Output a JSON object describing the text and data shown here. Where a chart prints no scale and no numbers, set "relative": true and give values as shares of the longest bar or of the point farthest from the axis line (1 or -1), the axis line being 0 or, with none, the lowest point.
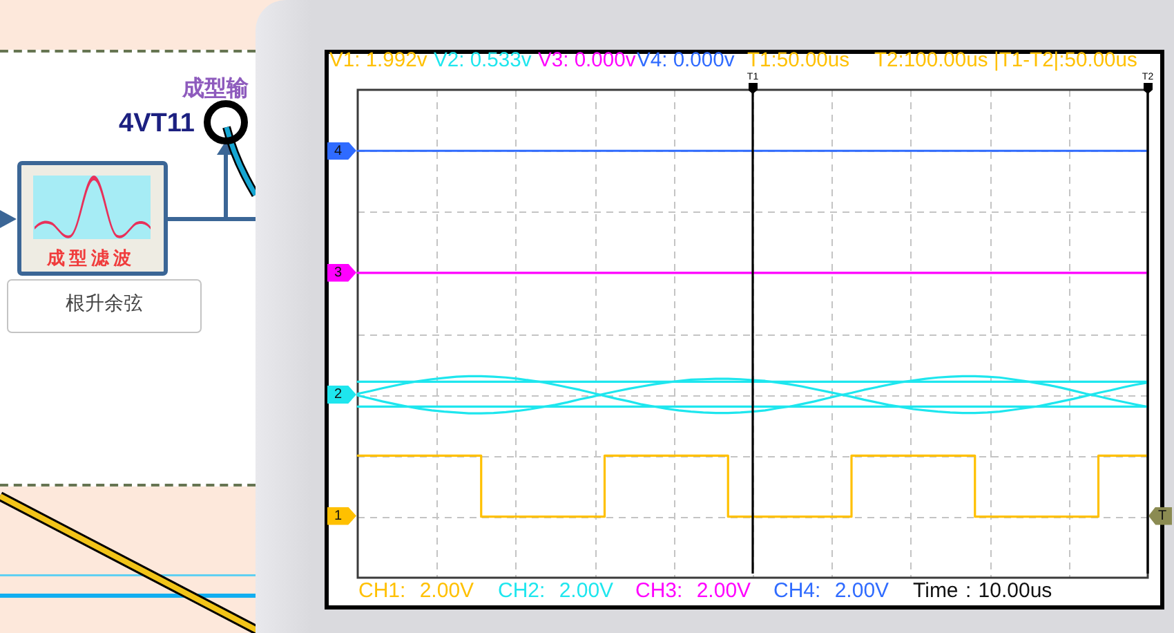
{
  "chart_data": {
    "type": "line",
    "relative": true,
    "marker": "none",
    "grid": true,
    "tick_labels": "x",
    "categories": [
      null,
      null,
      null,
      null,
      null,
      null,
      null,
      null,
      null,
      null,
      null,
      null,
      null,
      null,
      null,
      null,
      null,
      null,
      null,
      null,
      null,
      null,
      null,
      null,
      null,
      null,
      null,
      null,
      null,
      null,
      null,
      null,
      "T1",
      null,
      null,
      null,
      null,
      null,
      null,
      null,
      null,
      null,
      null,
      null,
      null,
      null,
      null,
      null,
      null,
      null,
      null,
      null,
      null,
      null,
      null,
      null,
      null,
      null,
      null,
      null,
      null,
      null,
      null,
      null,
      "T2"
    ],
    "series": [
      {
        "type": "step",
        "color": "#ffc000",
        "values": [
          0.286,
          0.286,
          0.286,
          0.286,
          0.286,
          0.286,
          0.286,
          0.286,
          0.286,
          0.286,
          0.143,
          0.143,
          0.143,
          0.143,
          0.143,
          0.143,
          0.143,
          0.143,
          0.143,
          0.143,
          0.286,
          0.286,
          0.286,
          0.286,
          0.286,
          0.286,
          0.286,
          0.286,
          0.286,
          0.286,
          0.143,
          0.143,
          0.143,
          0.143,
          0.143,
          0.143,
          0.143,
          0.143,
          0.143,
          0.143,
          0.286,
          0.286,
          0.286,
          0.286,
          0.286,
          0.286,
          0.286,
          0.286,
          0.286,
          0.286,
          0.143,
          0.143,
          0.143,
          0.143,
          0.143,
          0.143,
          0.143,
          0.143,
          0.143,
          0.143,
          0.286,
          0.286,
          0.286,
          0.286,
          0.286
        ]
      },
      {
        "type": "line",
        "color": "#1ee6ee",
        "values": [
          0.459,
          0.459,
          0.459,
          0.459,
          0.459,
          0.459,
          0.459,
          0.459,
          0.459,
          0.459,
          0.459,
          0.459,
          0.459,
          0.459,
          0.459,
          0.459,
          0.459,
          0.459,
          0.459,
          0.459,
          0.459,
          0.459,
          0.459,
          0.459,
          0.459,
          0.459,
          0.459,
          0.459,
          0.459,
          0.459,
          0.459,
          0.459,
          0.459,
          0.459,
          0.459,
          0.459,
          0.459,
          0.459,
          0.459,
          0.459,
          0.459,
          0.459,
          0.459,
          0.459,
          0.459,
          0.459,
          0.459,
          0.459,
          0.459,
          0.459,
          0.459,
          0.459,
          0.459,
          0.459,
          0.459,
          0.459,
          0.459,
          0.459,
          0.459,
          0.459,
          0.459,
          0.459,
          0.459,
          0.459,
          0.459
        ]
      },
      {
        "type": "line",
        "color": "#1ee6ee",
        "values": [
          0.401,
          0.401,
          0.401,
          0.401,
          0.401,
          0.401,
          0.401,
          0.401,
          0.401,
          0.401,
          0.401,
          0.401,
          0.401,
          0.401,
          0.401,
          0.401,
          0.401,
          0.401,
          0.401,
          0.401,
          0.401,
          0.401,
          0.401,
          0.401,
          0.401,
          0.401,
          0.401,
          0.401,
          0.401,
          0.401,
          0.401,
          0.401,
          0.401,
          0.401,
          0.401,
          0.401,
          0.401,
          0.401,
          0.401,
          0.401,
          0.401,
          0.401,
          0.401,
          0.401,
          0.401,
          0.401,
          0.401,
          0.401,
          0.401,
          0.401,
          0.401,
          0.401,
          0.401,
          0.401,
          0.401,
          0.401,
          0.401,
          0.401,
          0.401,
          0.401,
          0.401,
          0.401,
          0.401,
          0.401,
          0.401
        ]
      },
      {
        "type": "line",
        "color": "#1ee6ee",
        "values": [
          0.431,
          0.437,
          0.444,
          0.45,
          0.456,
          0.461,
          0.465,
          0.468,
          0.471,
          0.472,
          0.472,
          0.471,
          0.469,
          0.466,
          0.462,
          0.458,
          0.452,
          0.446,
          0.44,
          0.433,
          0.426,
          0.419,
          0.413,
          0.406,
          0.401,
          0.396,
          0.392,
          0.389,
          0.387,
          0.386,
          0.386,
          0.387,
          0.389,
          0.392,
          0.397,
          0.401,
          0.407,
          0.413,
          0.42,
          0.427,
          0.433,
          0.44,
          0.446,
          0.452,
          0.458,
          0.462,
          0.466,
          0.469,
          0.471,
          0.472,
          0.472,
          0.471,
          0.469,
          0.465,
          0.461,
          0.456,
          0.451,
          0.445,
          0.438,
          0.431,
          0.425,
          0.418,
          0.412,
          0.406,
          0.4
        ]
      },
      {
        "type": "line",
        "color": "#1ee6ee",
        "values": [
          0.427,
          0.42,
          0.413,
          0.407,
          0.401,
          0.396,
          0.392,
          0.389,
          0.387,
          0.385,
          0.385,
          0.386,
          0.388,
          0.391,
          0.395,
          0.4,
          0.405,
          0.411,
          0.418,
          0.424,
          0.431,
          0.437,
          0.443,
          0.448,
          0.453,
          0.457,
          0.461,
          0.464,
          0.465,
          0.466,
          0.466,
          0.465,
          0.463,
          0.461,
          0.457,
          0.453,
          0.448,
          0.442,
          0.436,
          0.43,
          0.424,
          0.417,
          0.411,
          0.405,
          0.4,
          0.395,
          0.392,
          0.389,
          0.387,
          0.386,
          0.386,
          0.387,
          0.389,
          0.393,
          0.397,
          0.401,
          0.407,
          0.413,
          0.419,
          0.426,
          0.433,
          0.439,
          0.446,
          0.452,
          0.457
        ]
      },
      {
        "type": "line",
        "color": "#ff00ff",
        "values": [
          0.714,
          0.714,
          0.714,
          0.714,
          0.714,
          0.714,
          0.714,
          0.714,
          0.714,
          0.714,
          0.714,
          0.714,
          0.714,
          0.714,
          0.714,
          0.714,
          0.714,
          0.714,
          0.714,
          0.714,
          0.714,
          0.714,
          0.714,
          0.714,
          0.714,
          0.714,
          0.714,
          0.714,
          0.714,
          0.714,
          0.714,
          0.714,
          0.714,
          0.714,
          0.714,
          0.714,
          0.714,
          0.714,
          0.714,
          0.714,
          0.714,
          0.714,
          0.714,
          0.714,
          0.714,
          0.714,
          0.714,
          0.714,
          0.714,
          0.714,
          0.714,
          0.714,
          0.714,
          0.714,
          0.714,
          0.714,
          0.714,
          0.714,
          0.714,
          0.714,
          0.714,
          0.714,
          0.714,
          0.714,
          0.714
        ]
      },
      {
        "type": "line",
        "color": "#2f6bff",
        "values": [
          1,
          1,
          1,
          1,
          1,
          1,
          1,
          1,
          1,
          1,
          1,
          1,
          1,
          1,
          1,
          1,
          1,
          1,
          1,
          1,
          1,
          1,
          1,
          1,
          1,
          1,
          1,
          1,
          1,
          1,
          1,
          1,
          1,
          1,
          1,
          1,
          1,
          1,
          1,
          1,
          1,
          1,
          1,
          1,
          1,
          1,
          1,
          1,
          1,
          1,
          1,
          1,
          1,
          1,
          1,
          1,
          1,
          1,
          1,
          1,
          1,
          1,
          1,
          1,
          1
        ]
      }
    ],
    "ref_lines": [
      {
        "axis": "x",
        "value": "T1",
        "color": "#000000"
      },
      {
        "axis": "x",
        "value": "T2",
        "color": "#000000"
      }
    ],
    "annotations": [
      "1",
      "2",
      "3",
      "4",
      "T",
      "V1: 1.992v",
      "V2: 0.533v",
      "V3: 0.000v",
      "V4: 0.000v",
      "T1:50.00us",
      "T2:100.00us",
      "|T1-T2|:50.00us",
      "CH1: 2.00V",
      "CH2: 2.00V",
      "CH3: 2.00V",
      "CH4: 2.00V",
      "Time : 10.00us",
      "成型输",
      "4VT11",
      "成型滤波",
      "根升余弦"
    ]
  }
}
